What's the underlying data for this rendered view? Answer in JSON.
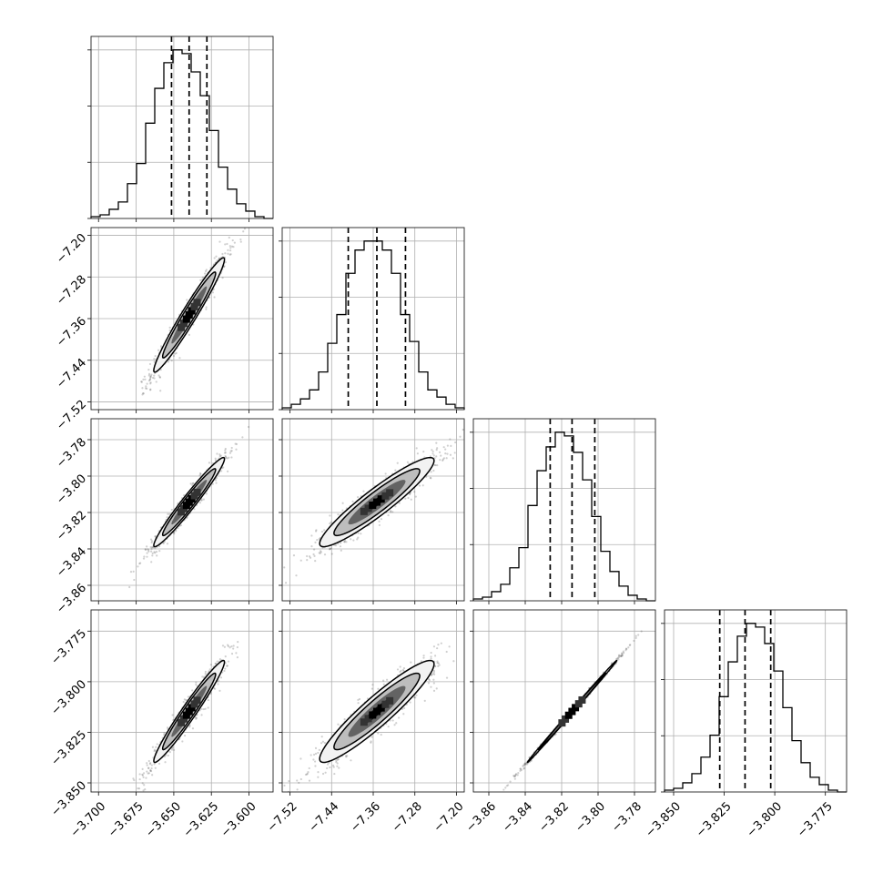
{
  "chart_data": {
    "type": "corner",
    "title": "",
    "parameters": [
      "",
      "",
      "",
      ""
    ],
    "ranges": [
      [
        -3.705,
        -3.584
      ],
      [
        -7.535,
        -7.185
      ],
      [
        -3.8685,
        -3.7685
      ],
      [
        -3.8545,
        -3.7645
      ]
    ],
    "ticks": [
      {
        "values": [
          -3.7,
          -3.675,
          -3.65,
          -3.625,
          -3.6
        ],
        "labels": [
          "−3.700",
          "−3.675",
          "−3.650",
          "−3.625",
          "−3.600"
        ]
      },
      {
        "values": [
          -7.52,
          -7.44,
          -7.36,
          -7.28,
          -7.2
        ],
        "labels": [
          "−7.52",
          "−7.44",
          "−7.36",
          "−7.28",
          "−7.20"
        ]
      },
      {
        "values": [
          -3.86,
          -3.84,
          -3.82,
          -3.8,
          -3.78
        ],
        "labels": [
          "−3.86",
          "−3.84",
          "−3.82",
          "−3.80",
          "−3.78"
        ]
      },
      {
        "values": [
          -3.85,
          -3.825,
          -3.8,
          -3.775
        ],
        "labels": [
          "−3.850",
          "−3.825",
          "−3.800",
          "−3.775"
        ]
      }
    ],
    "quantiles": [
      [
        -3.6515,
        -3.6398,
        -3.628
      ],
      [
        -7.408,
        -7.353,
        -7.298
      ],
      [
        -3.8263,
        -3.8143,
        -3.8018
      ],
      [
        -3.8272,
        -3.8147,
        -3.802
      ]
    ],
    "histograms": [
      [
        1,
        2,
        5,
        9,
        19,
        30,
        52,
        71,
        85,
        92,
        90,
        80,
        67,
        48,
        28,
        16,
        8,
        4,
        1,
        0
      ],
      [
        1,
        3,
        6,
        11,
        21,
        37,
        53,
        76,
        89,
        94,
        94,
        89,
        76,
        53,
        38,
        21,
        11,
        7,
        3,
        1
      ],
      [
        1,
        2,
        5,
        9,
        18,
        29,
        52,
        71,
        84,
        92,
        90,
        81,
        66,
        46,
        27,
        16,
        8,
        3,
        1,
        0
      ],
      [
        1,
        2,
        5,
        10,
        19,
        31,
        52,
        71,
        85,
        92,
        90,
        81,
        66,
        46,
        28,
        16,
        8,
        4,
        1,
        0
      ]
    ],
    "correlations": [
      [
        1,
        0.97,
        0.97,
        0.97
      ],
      [
        0.97,
        1,
        0.93,
        0.93
      ],
      [
        0.97,
        0.93,
        1,
        0.999
      ],
      [
        0.97,
        0.93,
        0.999,
        1
      ]
    ],
    "grid": true,
    "shading_colors": [
      "#f2f2f2",
      "#bdbdbd",
      "#636363",
      "#141414"
    ]
  }
}
